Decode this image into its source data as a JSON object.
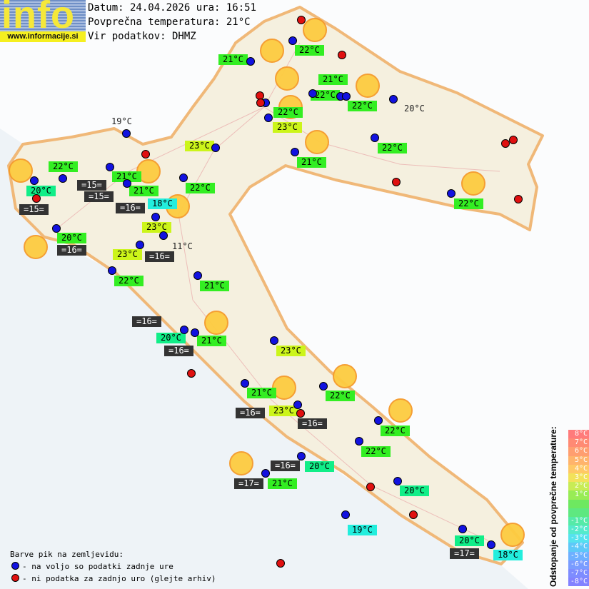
{
  "logo": {
    "word": "info",
    "url": "www.informacije.si"
  },
  "header": {
    "date_line": "Datum: 24.04.2026 ura: 16:51",
    "avg_temp_line": "Povprečna temperatura: 21°C",
    "source_line": "Vir podatkov: DHMZ"
  },
  "map_labels": [
    "22°C",
    "21°C",
    "21°C",
    "22°C",
    "22°C",
    "22°C",
    "23°C",
    "20°C",
    "21°C",
    "22°C",
    "22°C",
    "23°C",
    "19°C",
    "22°C",
    "20°C",
    "=15=",
    "=15=",
    "21°C",
    "=15=",
    "21°C",
    "18°C",
    "=16=",
    "22°C",
    "23°C",
    "11°C",
    "20°C",
    "=16=",
    "23°C",
    "=16=",
    "22°C",
    "21°C",
    "=16=",
    "20°C",
    "21°C",
    "=16=",
    "23°C",
    "21°C",
    "22°C",
    "=16=",
    "23°C",
    "=16=",
    "22°C",
    "22°C",
    "=16=",
    "20°C",
    "=17=",
    "21°C",
    "20°C",
    "19°C",
    "20°C",
    "=17=",
    "18°C"
  ],
  "label_colors": {
    "green": "#33ee22",
    "yellow_green": "#ccf51a",
    "teal": "#11ee88",
    "cyan": "#22eedd",
    "sea_water_temp": "#333333"
  },
  "icons": {
    "sun": "sunny-icon",
    "blue_dot": "station-data-available",
    "red_dot": "station-no-data"
  },
  "legend": {
    "title": "Barve pik na zemljevidu:",
    "items": [
      {
        "color": "#1212e0",
        "text": "- na voljo so podatki zadnje ure"
      },
      {
        "color": "#e01010",
        "text": "- ni podatka za zadnjo uro (glejte arhiv)"
      }
    ]
  },
  "scale": {
    "title": "Odstopanje od povprečne temperature:",
    "rows": [
      {
        "label": "8°C",
        "color": "#ff7b7b"
      },
      {
        "label": "7°C",
        "color": "#ff8a74"
      },
      {
        "label": "6°C",
        "color": "#ff9e70"
      },
      {
        "label": "5°C",
        "color": "#ffb46c"
      },
      {
        "label": "4°C",
        "color": "#ffc866"
      },
      {
        "label": "3°C",
        "color": "#f2e25a"
      },
      {
        "label": "2°C",
        "color": "#c8ec55"
      },
      {
        "label": "1°C",
        "color": "#98ec55"
      },
      {
        "label": "",
        "color": "#6ee860"
      },
      {
        "label": "",
        "color": "#5ee880"
      },
      {
        "label": "-1°C",
        "color": "#55eaa8"
      },
      {
        "label": "-2°C",
        "color": "#55eacc"
      },
      {
        "label": "-3°C",
        "color": "#55e2ee"
      },
      {
        "label": "-4°C",
        "color": "#5ec8f8"
      },
      {
        "label": "-5°C",
        "color": "#6eb0ff"
      },
      {
        "label": "-6°C",
        "color": "#7a9cff"
      },
      {
        "label": "-7°C",
        "color": "#7e8cff"
      },
      {
        "label": "-8°C",
        "color": "#8282ff"
      }
    ]
  }
}
